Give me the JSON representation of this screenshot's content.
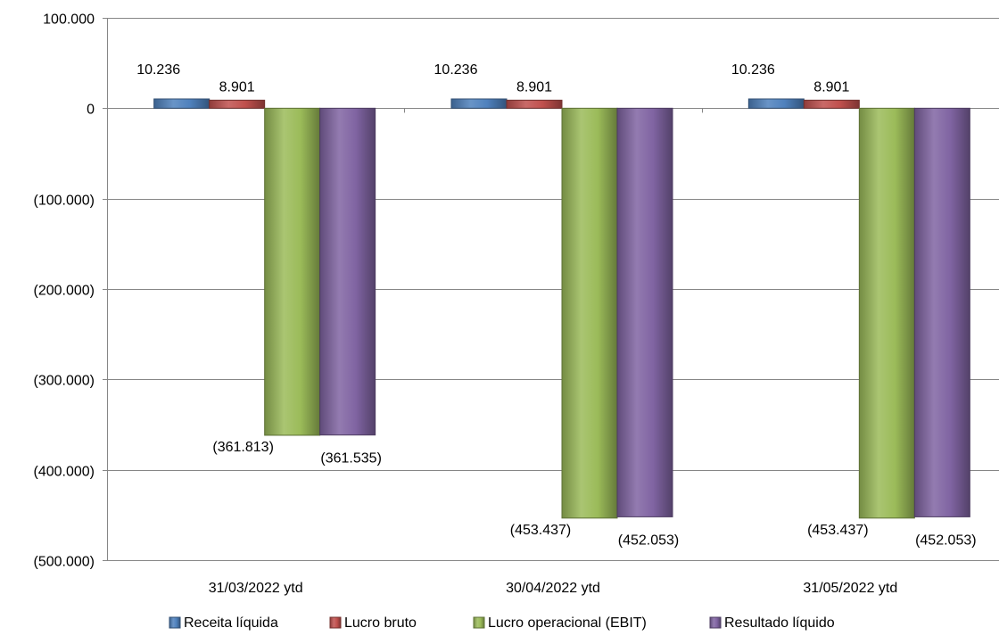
{
  "chart_data": {
    "type": "bar",
    "categories": [
      "31/03/2022 ytd",
      "30/04/2022 ytd",
      "31/05/2022 ytd"
    ],
    "series": [
      {
        "name": "Receita líquida",
        "values": [
          10236,
          10236,
          10236
        ],
        "labels": [
          "10.236",
          "10.236",
          "10.236"
        ],
        "color": "#4f81bd"
      },
      {
        "name": "Lucro bruto",
        "values": [
          8901,
          8901,
          8901
        ],
        "labels": [
          "8.901",
          "8.901",
          "8.901"
        ],
        "color": "#c0504d"
      },
      {
        "name": "Lucro operacional (EBIT)",
        "values": [
          -361813,
          -453437,
          -453437
        ],
        "labels": [
          "(361.813)",
          "(453.437)",
          "(453.437)"
        ],
        "color": "#9bbb59"
      },
      {
        "name": "Resultado líquido",
        "values": [
          -361535,
          -452053,
          -452053
        ],
        "labels": [
          "(361.535)",
          "(452.053)",
          "(452.053)"
        ],
        "color": "#8064a2"
      }
    ],
    "ylim": [
      -500000,
      100000
    ],
    "yticks": [
      100000,
      0,
      -100000,
      -200000,
      -300000,
      -400000,
      -500000
    ],
    "ytick_labels": [
      "100.000",
      "0",
      "(100.000)",
      "(200.000)",
      "(300.000)",
      "(400.000)",
      "(500.000)"
    ],
    "grid": true,
    "legend": "bottom",
    "title": "",
    "xlabel": "",
    "ylabel": ""
  }
}
